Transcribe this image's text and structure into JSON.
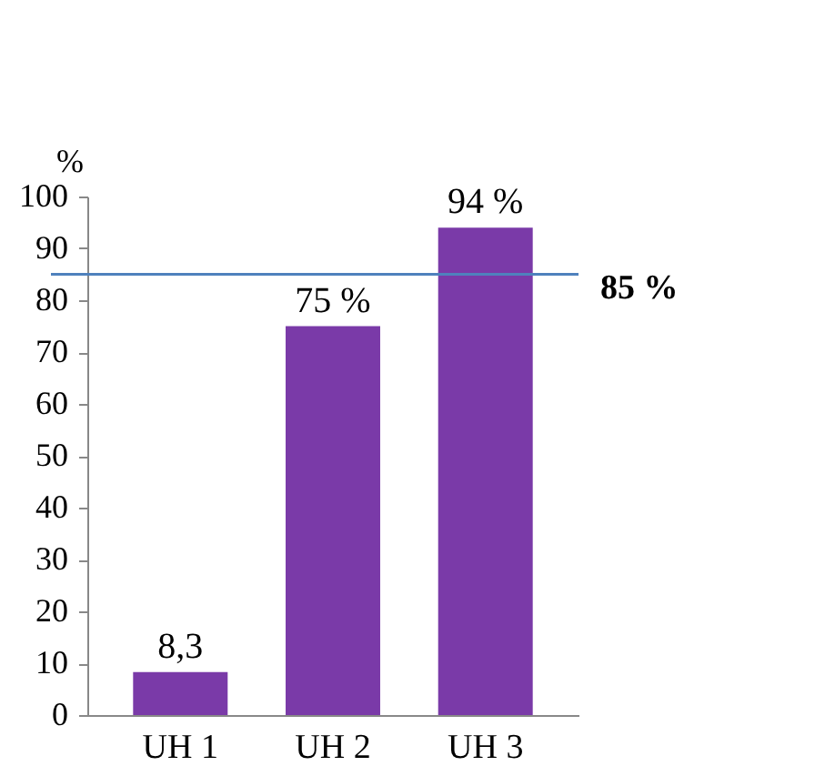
{
  "chart_data": {
    "type": "bar",
    "ylabel": "%",
    "categories": [
      "UH 1",
      "UH 2",
      "UH 3"
    ],
    "values": [
      8.3,
      75,
      94
    ],
    "value_labels": [
      "8,3",
      "75 %",
      "94 %"
    ],
    "color": "#7a3aa8",
    "ylim": [
      0,
      100
    ],
    "yticks": [
      0,
      10,
      20,
      30,
      40,
      50,
      60,
      70,
      80,
      90,
      100
    ],
    "grid": false,
    "ref_lines": [
      {
        "axis": "y",
        "value": 85,
        "label": "85 %",
        "color": "#4f81bd"
      }
    ]
  }
}
